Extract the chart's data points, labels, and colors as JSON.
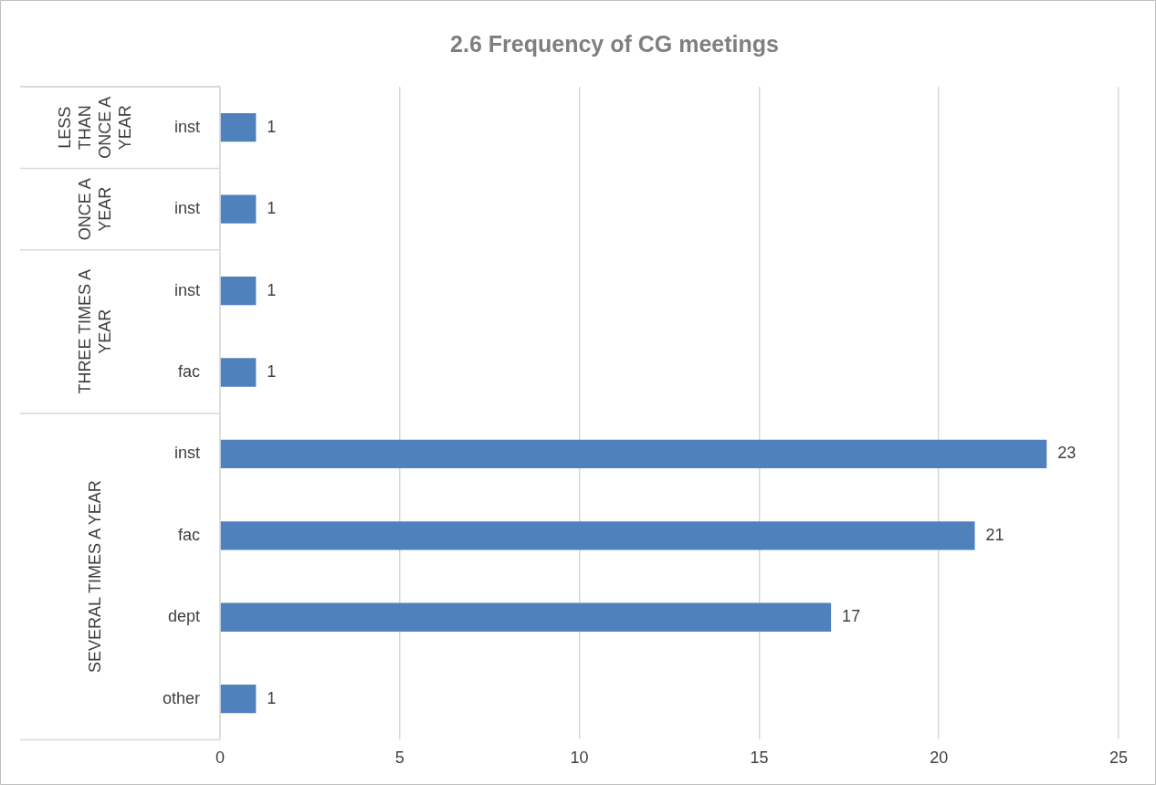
{
  "chart_data": {
    "type": "bar",
    "orientation": "horizontal",
    "title": "2.6 Frequency of CG meetings",
    "categories": [
      "inst",
      "inst",
      "inst",
      "fac",
      "inst",
      "fac",
      "dept",
      "other"
    ],
    "values": [
      1,
      1,
      1,
      1,
      23,
      21,
      17,
      1
    ],
    "color": "#4f81bd",
    "xlim": [
      0,
      25
    ],
    "xticks": [
      0,
      5,
      10,
      15,
      20,
      25
    ],
    "grid": "x",
    "data_labels": true,
    "legend": false,
    "annotations": [
      "LESS THAN ONCE A YEAR",
      "ONCE A YEAR",
      "THREE TIMES A YEAR",
      "SEVERAL TIMES A YEAR"
    ]
  }
}
